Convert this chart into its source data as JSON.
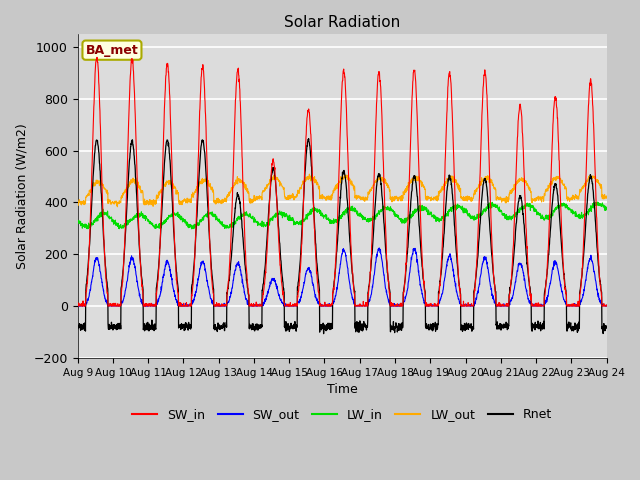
{
  "title": "Solar Radiation",
  "ylabel": "Solar Radiation (W/m2)",
  "xlabel": "Time",
  "ylim": [
    -200,
    1050
  ],
  "yticks": [
    -200,
    0,
    200,
    400,
    600,
    800,
    1000
  ],
  "xtick_labels": [
    "Aug 9",
    "Aug 10",
    "Aug 11",
    "Aug 12",
    "Aug 13",
    "Aug 14",
    "Aug 15",
    "Aug 16",
    "Aug 17",
    "Aug 18",
    "Aug 19",
    "Aug 20",
    "Aug 21",
    "Aug 22",
    "Aug 23",
    "Aug 24"
  ],
  "legend_label": "BA_met",
  "series_colors": {
    "SW_in": "#ff0000",
    "SW_out": "#0000ff",
    "LW_in": "#00dd00",
    "LW_out": "#ffaa00",
    "Rnet": "#000000"
  },
  "bg_color": "#dcdcdc",
  "total_days": 15,
  "pts_per_day": 144,
  "SW_in_peaks": [
    960,
    955,
    935,
    920,
    910,
    560,
    760,
    910,
    900,
    910,
    900,
    905,
    775,
    810,
    870
  ],
  "SW_out_peaks": [
    185,
    185,
    170,
    170,
    165,
    105,
    145,
    215,
    220,
    220,
    195,
    185,
    165,
    170,
    185
  ],
  "LW_in_base": [
    330,
    330,
    330,
    330,
    330,
    335,
    345,
    350,
    355,
    355,
    360,
    365,
    365,
    365,
    370
  ],
  "LW_in_amp": 25,
  "LW_out_base": [
    400,
    400,
    400,
    405,
    405,
    415,
    420,
    420,
    415,
    415,
    415,
    415,
    410,
    415,
    420
  ],
  "LW_out_day_boost": 80,
  "Rnet_peaks": [
    640,
    635,
    640,
    640,
    430,
    530,
    640,
    520,
    510,
    500,
    500,
    490,
    420,
    470,
    500
  ],
  "Rnet_night": -80
}
